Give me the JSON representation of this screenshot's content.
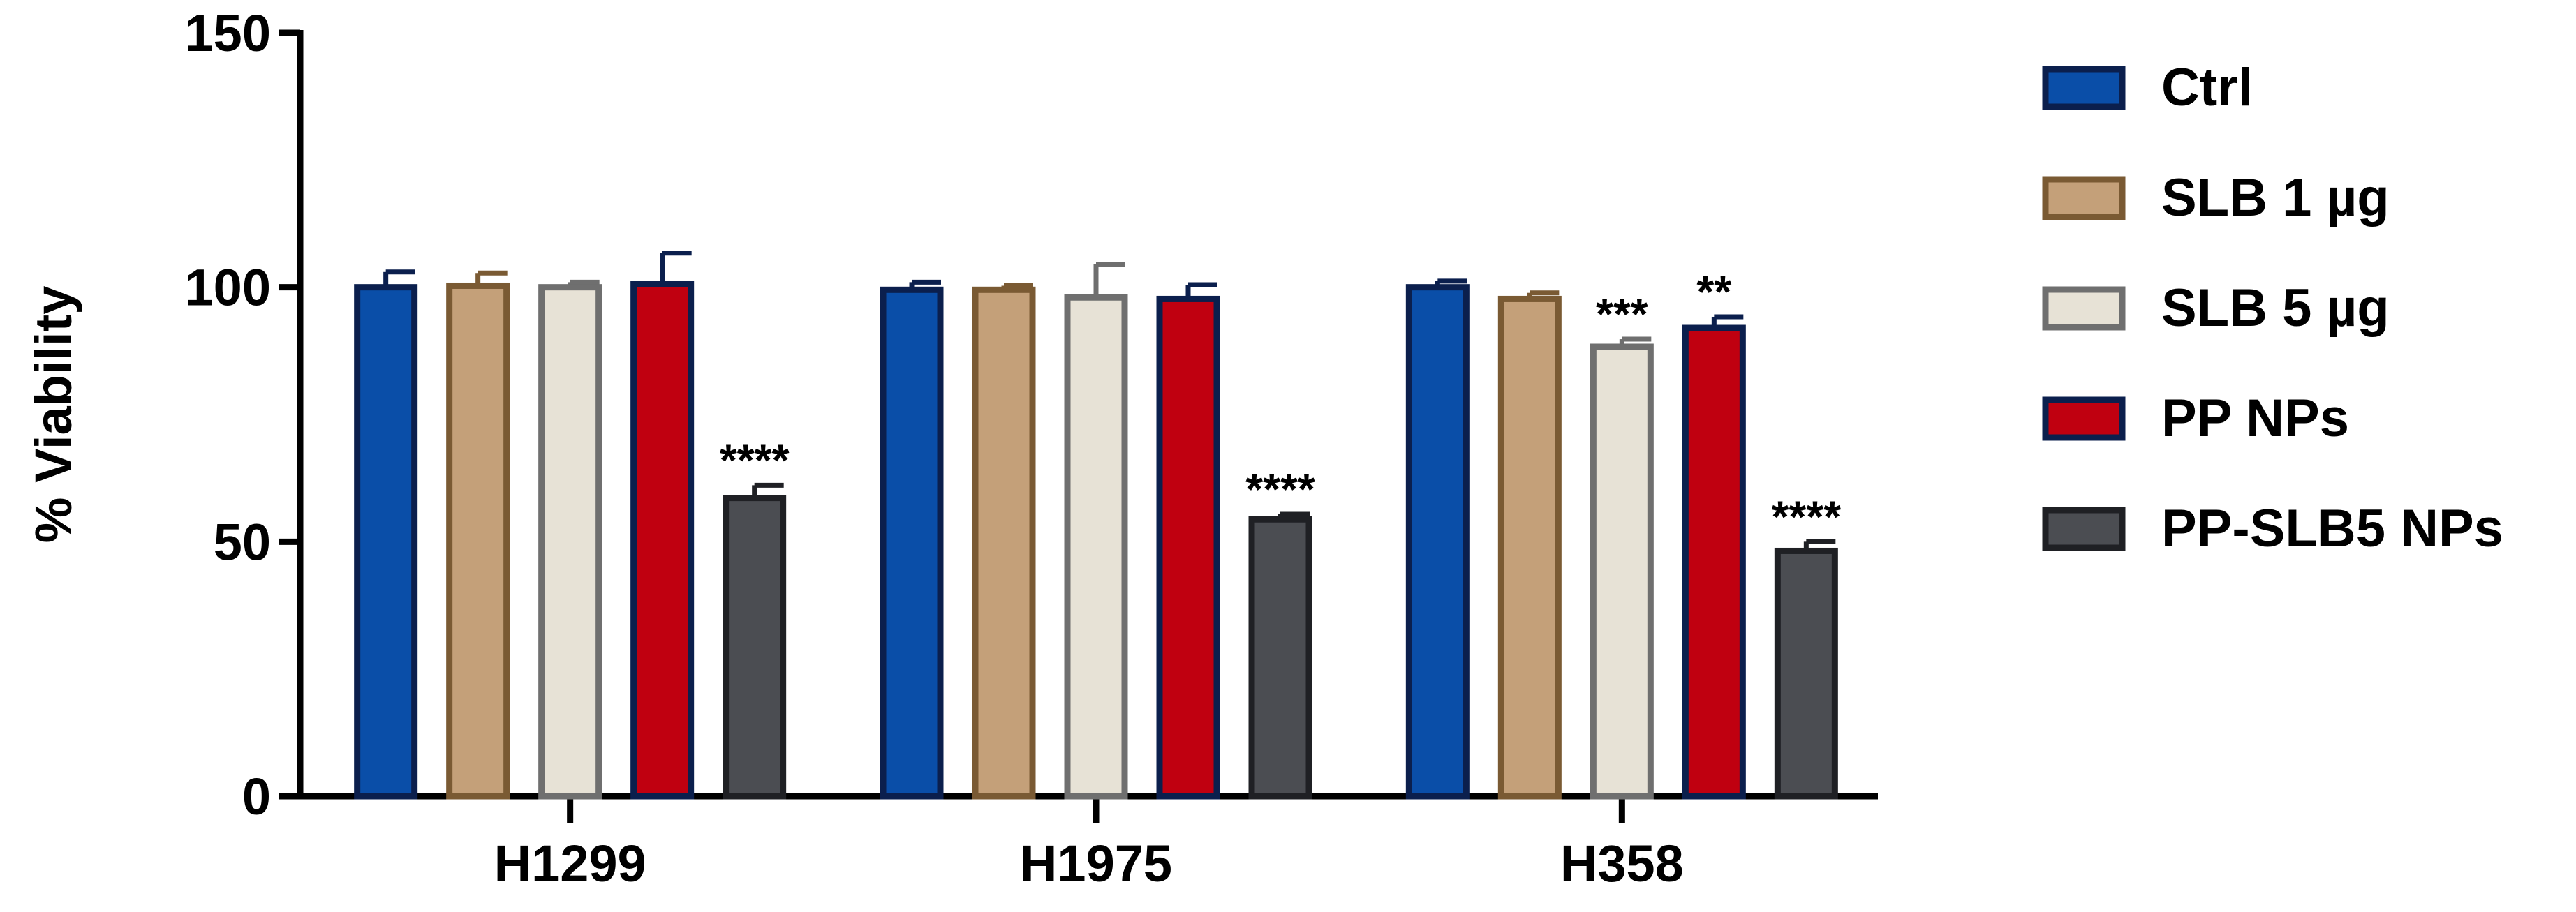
{
  "chart_data": {
    "type": "bar",
    "title": "",
    "xlabel": "",
    "ylabel": "% Viability",
    "ylim": [
      0,
      150
    ],
    "yticks": [
      0,
      50,
      100,
      150
    ],
    "grid": false,
    "legend_position": "right",
    "categories": [
      "H1299",
      "H1975",
      "H358"
    ],
    "series": [
      {
        "name": "Ctrl",
        "values": [
          100,
          99.5,
          100
        ],
        "errors": [
          3,
          1.5,
          1.2
        ],
        "fill": "#0a4ea8",
        "edge": "#0b1f4d",
        "annotations": [
          "",
          "",
          ""
        ]
      },
      {
        "name": "SLB 1 µg",
        "values": [
          100.3,
          99.5,
          97.7
        ],
        "errors": [
          2.5,
          0.8,
          1.2
        ],
        "fill": "#c4a079",
        "edge": "#7a5a33",
        "annotations": [
          "",
          "",
          ""
        ]
      },
      {
        "name": "SLB 5 µg",
        "values": [
          100,
          98,
          88.3
        ],
        "errors": [
          1,
          6.5,
          1.5
        ],
        "fill": "#e7e2d6",
        "edge": "#6f6f6f",
        "annotations": [
          "",
          "",
          "***"
        ]
      },
      {
        "name": "PP NPs",
        "values": [
          100.7,
          97.7,
          92
        ],
        "errors": [
          6,
          2.8,
          2.2
        ],
        "fill": "#c00010",
        "edge": "#0b1f4d",
        "annotations": [
          "",
          "",
          "**"
        ]
      },
      {
        "name": "PP-SLB5 NPs",
        "values": [
          58.6,
          54.4,
          48.2
        ],
        "errors": [
          2.5,
          1,
          1.8
        ],
        "fill": "#4b4d52",
        "edge": "#1f2024",
        "annotations": [
          "****",
          "****",
          "****"
        ]
      }
    ]
  }
}
